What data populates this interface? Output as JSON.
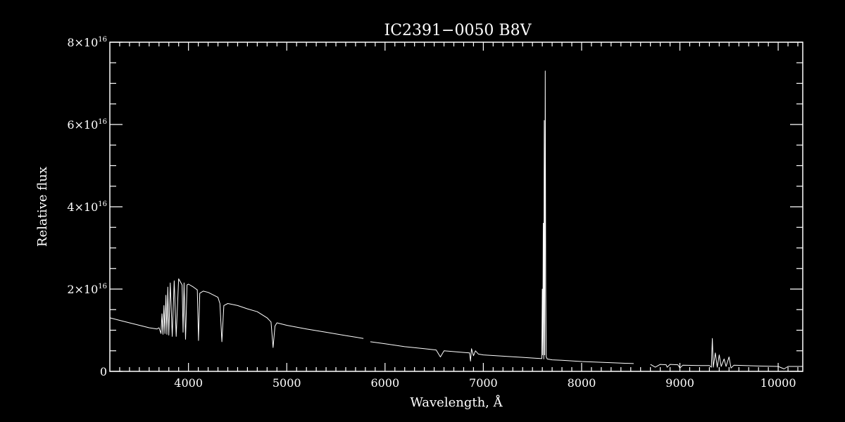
{
  "chart_data": {
    "type": "line",
    "title": "IC2391−0050   B8V",
    "xlabel": "Wavelength, Å",
    "ylabel": "Relative flux",
    "xlim": [
      3200,
      10250
    ],
    "ylim": [
      0,
      8e+16
    ],
    "x_ticks": [
      {
        "value": 4000,
        "label": "4000"
      },
      {
        "value": 5000,
        "label": "5000"
      },
      {
        "value": 6000,
        "label": "6000"
      },
      {
        "value": 7000,
        "label": "7000"
      },
      {
        "value": 8000,
        "label": "8000"
      },
      {
        "value": 9000,
        "label": "9000"
      },
      {
        "value": 10000,
        "label": "10000"
      }
    ],
    "y_ticks": [
      {
        "value": 0,
        "mant": "0",
        "exp": ""
      },
      {
        "value": 2e+16,
        "mant": "2×10",
        "exp": "16"
      },
      {
        "value": 4e+16,
        "mant": "4×10",
        "exp": "16"
      },
      {
        "value": 6e+16,
        "mant": "6×10",
        "exp": "16"
      },
      {
        "value": 8e+16,
        "mant": "8×10",
        "exp": "16"
      }
    ],
    "grid": false,
    "background": "#000000",
    "foreground": "#ffffff",
    "series": [
      {
        "segments": [
          [
            [
              3200,
              1.3e+16
            ],
            [
              3300,
              1.24e+16
            ],
            [
              3400,
              1.18e+16
            ],
            [
              3500,
              1.12e+16
            ],
            [
              3600,
              1.06e+16
            ],
            [
              3680,
              1.03e+16
            ],
            [
              3700,
              1.06e+16
            ],
            [
              3720,
              9200000000000000.0
            ],
            [
              3730,
              1.4e+16
            ],
            [
              3740,
              9000000000000000.0
            ],
            [
              3750,
              1.6e+16
            ],
            [
              3760,
              9200000000000000.0
            ],
            [
              3770,
              1.85e+16
            ],
            [
              3780,
              9000000000000000.0
            ],
            [
              3790,
              2.05e+16
            ],
            [
              3800,
              8800000000000000.0
            ],
            [
              3815,
              2.15e+16
            ],
            [
              3835,
              8500000000000000.0
            ],
            [
              3855,
              2.2e+16
            ],
            [
              3875,
              8500000000000000.0
            ],
            [
              3900,
              2.25e+16
            ],
            [
              3935,
              2.1e+16
            ],
            [
              3945,
              9500000000000000.0
            ],
            [
              3955,
              2.15e+16
            ],
            [
              3970,
              7800000000000000.0
            ],
            [
              3985,
              2.1e+16
            ],
            [
              4000,
              2.12e+16
            ],
            [
              4050,
              2.05e+16
            ],
            [
              4090,
              1.98e+16
            ],
            [
              4102,
              7500000000000000.0
            ],
            [
              4115,
              1.9e+16
            ],
            [
              4150,
              1.95e+16
            ],
            [
              4200,
              1.92e+16
            ],
            [
              4300,
              1.8e+16
            ],
            [
              4320,
              1.65e+16
            ],
            [
              4340,
              7200000000000000.0
            ],
            [
              4360,
              1.6e+16
            ],
            [
              4400,
              1.65e+16
            ],
            [
              4500,
              1.6e+16
            ],
            [
              4600,
              1.52e+16
            ],
            [
              4700,
              1.45e+16
            ],
            [
              4800,
              1.3e+16
            ],
            [
              4840,
              1.2e+16
            ],
            [
              4861,
              5800000000000000.0
            ],
            [
              4880,
              1.1e+16
            ],
            [
              4900,
              1.18e+16
            ],
            [
              5000,
              1.12e+16
            ],
            [
              5200,
              1.03e+16
            ],
            [
              5400,
              9500000000000000.0
            ],
            [
              5600,
              8700000000000000.0
            ],
            [
              5780,
              8000000000000000.0
            ]
          ],
          [
            [
              5850,
              7200000000000000.0
            ],
            [
              6000,
              6700000000000000.0
            ],
            [
              6200,
              6000000000000000.0
            ],
            [
              6400,
              5500000000000000.0
            ],
            [
              6520,
              5200000000000000.0
            ],
            [
              6563,
              3500000000000000.0
            ],
            [
              6600,
              5000000000000000.0
            ],
            [
              6800,
              4600000000000000.0
            ],
            [
              6860,
              4500000000000000.0
            ],
            [
              6870,
              2500000000000000.0
            ],
            [
              6880,
              5500000000000000.0
            ],
            [
              6900,
              3800000000000000.0
            ],
            [
              6920,
              5000000000000000.0
            ],
            [
              6950,
              4200000000000000.0
            ],
            [
              7000,
              4000000000000000.0
            ],
            [
              7200,
              3700000000000000.0
            ],
            [
              7400,
              3400000000000000.0
            ],
            [
              7595,
              3100000000000000.0
            ],
            [
              7600,
              2e+16
            ],
            [
              7605,
              4000000000000000.0
            ],
            [
              7610,
              3.6e+16
            ],
            [
              7615,
              3000000000000000.0
            ],
            [
              7620,
              6.1e+16
            ],
            [
              7625,
              4000000000000000.0
            ],
            [
              7630,
              7.3e+16
            ],
            [
              7635,
              2.05e+16
            ],
            [
              7640,
              3500000000000000.0
            ],
            [
              7650,
              3000000000000000.0
            ],
            [
              7700,
              2800000000000000.0
            ],
            [
              7800,
              2700000000000000.0
            ],
            [
              8000,
              2400000000000000.0
            ],
            [
              8200,
              2200000000000000.0
            ],
            [
              8400,
              2000000000000000.0
            ],
            [
              8530,
              1900000000000000.0
            ]
          ],
          [
            [
              8700,
              1700000000000000.0
            ],
            [
              8750,
              1000000000000000.0
            ],
            [
              8800,
              1700000000000000.0
            ],
            [
              8860,
              1600000000000000.0
            ],
            [
              8870,
              1000000000000000.0
            ],
            [
              8900,
              1700000000000000.0
            ],
            [
              8980,
              1600000000000000.0
            ],
            [
              9000,
              800000000000000.0
            ],
            [
              9030,
              1500000000000000.0
            ],
            [
              9200,
              1400000000000000.0
            ],
            [
              9300,
              1400000000000000.0
            ],
            [
              9320,
              1000000000000000.0
            ],
            [
              9330,
              8000000000000000.0
            ],
            [
              9340,
              1000000000000000.0
            ],
            [
              9360,
              4500000000000000.0
            ],
            [
              9380,
              1000000000000000.0
            ],
            [
              9400,
              4000000000000000.0
            ],
            [
              9420,
              1200000000000000.0
            ],
            [
              9450,
              3000000000000000.0
            ],
            [
              9470,
              1200000000000000.0
            ],
            [
              9500,
              3500000000000000.0
            ],
            [
              9520,
              800000000000000.0
            ],
            [
              9550,
              1500000000000000.0
            ],
            [
              9800,
              1300000000000000.0
            ],
            [
              10000,
              1200000000000000.0
            ],
            [
              10060,
              600000000000000.0
            ],
            [
              10100,
              1200000000000000.0
            ],
            [
              10250,
              1200000000000000.0
            ]
          ]
        ]
      }
    ]
  }
}
